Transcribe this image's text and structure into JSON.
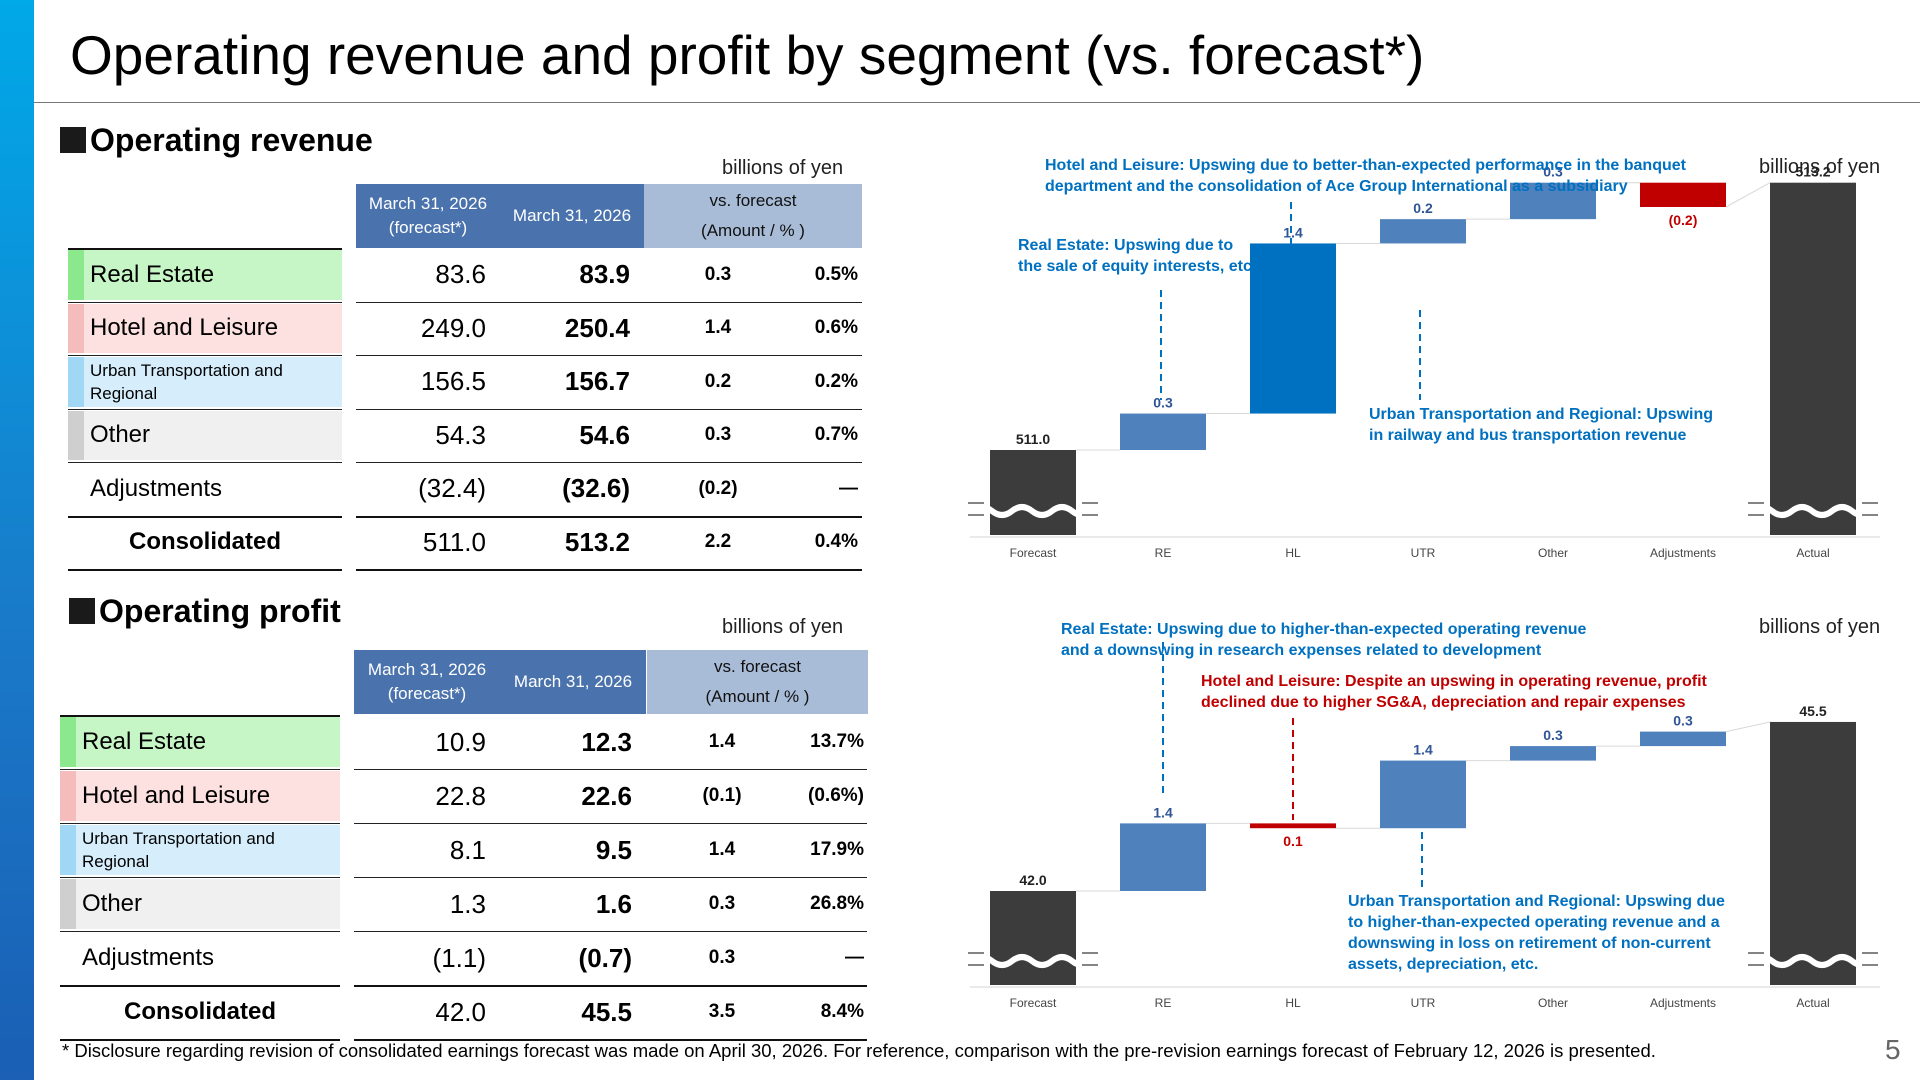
{
  "page": {
    "title": "Operating revenue and profit by segment (vs. forecast*)",
    "footnote": "* Disclosure regarding revision of consolidated earnings forecast was made on April 30, 2026. For reference, comparison with the pre-revision earnings forecast of February 12, 2026 is presented.",
    "page_number": "5"
  },
  "colors": {
    "real_estate": "#c6f5c6",
    "real_estate_strip": "#8ce88c",
    "hotel": "#fde0e0",
    "hotel_strip": "#f5bcbc",
    "urban": "#d6eefc",
    "urban_strip": "#9fd7f5",
    "other": "#f0f0f0",
    "other_strip": "#cfcfcf",
    "bar_total": "#3c3c3c",
    "bar_up": "#4f81bd",
    "bar_up_highlight": "#0070c0",
    "bar_down": "#c00000",
    "annotation_blue": "#0070c0",
    "annotation_red": "#c00000"
  },
  "revenue_table": {
    "section_title": "Operating revenue",
    "unit": "billions of yen",
    "headers": {
      "forecast": "March 31, 2026\n(forecast*)",
      "actual": "March 31, 2026",
      "vs_line1": "vs. forecast",
      "vs_line2": "(Amount / % )"
    },
    "rows": [
      {
        "label": "Real Estate",
        "forecast": "83.6",
        "actual": "83.9",
        "amount": "0.3",
        "pct": "0.5%"
      },
      {
        "label": "Hotel and Leisure",
        "forecast": "249.0",
        "actual": "250.4",
        "amount": "1.4",
        "pct": "0.6%"
      },
      {
        "label": "Urban Transportation and\nRegional",
        "forecast": "156.5",
        "actual": "156.7",
        "amount": "0.2",
        "pct": "0.2%"
      },
      {
        "label": "Other",
        "forecast": "54.3",
        "actual": "54.6",
        "amount": "0.3",
        "pct": "0.7%"
      },
      {
        "label": "Adjustments",
        "forecast": "(32.4)",
        "actual": "(32.6)",
        "amount": "(0.2)",
        "pct": "―"
      },
      {
        "label": "Consolidated",
        "forecast": "511.0",
        "actual": "513.2",
        "amount": "2.2",
        "pct": "0.4%"
      }
    ]
  },
  "profit_table": {
    "section_title": "Operating profit",
    "unit": "billions of yen",
    "headers": {
      "forecast": "March 31, 2026\n(forecast*)",
      "actual": "March 31, 2026",
      "vs_line1": "vs. forecast",
      "vs_line2": "(Amount / % )"
    },
    "rows": [
      {
        "label": "Real Estate",
        "forecast": "10.9",
        "actual": "12.3",
        "amount": "1.4",
        "pct": "13.7%"
      },
      {
        "label": "Hotel and Leisure",
        "forecast": "22.8",
        "actual": "22.6",
        "amount": "(0.1)",
        "pct": "(0.6%)"
      },
      {
        "label": "Urban Transportation and\nRegional",
        "forecast": "8.1",
        "actual": "9.5",
        "amount": "1.4",
        "pct": "17.9%"
      },
      {
        "label": "Other",
        "forecast": "1.3",
        "actual": "1.6",
        "amount": "0.3",
        "pct": "26.8%"
      },
      {
        "label": "Adjustments",
        "forecast": "(1.1)",
        "actual": "(0.7)",
        "amount": "0.3",
        "pct": "―"
      },
      {
        "label": "Consolidated",
        "forecast": "42.0",
        "actual": "45.5",
        "amount": "3.5",
        "pct": "8.4%"
      }
    ]
  },
  "chart_data": [
    {
      "type": "bar",
      "subtype": "waterfall",
      "unit": "billions of yen",
      "categories": [
        "Forecast",
        "RE",
        "HL",
        "UTR",
        "Other",
        "Adjustments",
        "Actual"
      ],
      "values": [
        511.0,
        0.3,
        1.4,
        0.2,
        0.3,
        -0.2,
        513.2
      ],
      "value_labels": [
        "511.0",
        "0.3",
        "1.4",
        "0.2",
        "0.3",
        "(0.2)",
        "513.2"
      ],
      "axis_break": true,
      "annotations": [
        {
          "text": "Hotel and Leisure: Upswing due to better-than-expected performance in the banquet\ndepartment and the consolidation of Ace Group International as a subsidiary",
          "target": "HL",
          "color": "blue"
        },
        {
          "text": "Real Estate: Upswing due to\nthe sale of equity interests, etc.",
          "target": "RE",
          "color": "blue"
        },
        {
          "text": "Urban Transportation and Regional: Upswing\nin railway and bus transportation revenue",
          "target": "UTR",
          "color": "blue"
        }
      ]
    },
    {
      "type": "bar",
      "subtype": "waterfall",
      "unit": "billions of yen",
      "categories": [
        "Forecast",
        "RE",
        "HL",
        "UTR",
        "Other",
        "Adjustments",
        "Actual"
      ],
      "values": [
        42.0,
        1.4,
        -0.1,
        1.4,
        0.3,
        0.3,
        45.5
      ],
      "value_labels": [
        "42.0",
        "1.4",
        "0.1",
        "1.4",
        "0.3",
        "0.3",
        "45.5"
      ],
      "axis_break": true,
      "annotations": [
        {
          "text": "Real Estate: Upswing due to higher-than-expected operating revenue\nand a downswing in research expenses related to development",
          "target": "RE",
          "color": "blue"
        },
        {
          "text": "Hotel and Leisure: Despite an upswing in operating revenue, profit\ndeclined due to higher SG&A, depreciation and repair expenses",
          "target": "HL",
          "color": "red"
        },
        {
          "text": "Urban Transportation and Regional: Upswing due\nto higher-than-expected operating revenue and a\ndownswing in loss on retirement of non-current\nassets, depreciation, etc.",
          "target": "UTR",
          "color": "blue"
        }
      ]
    }
  ]
}
